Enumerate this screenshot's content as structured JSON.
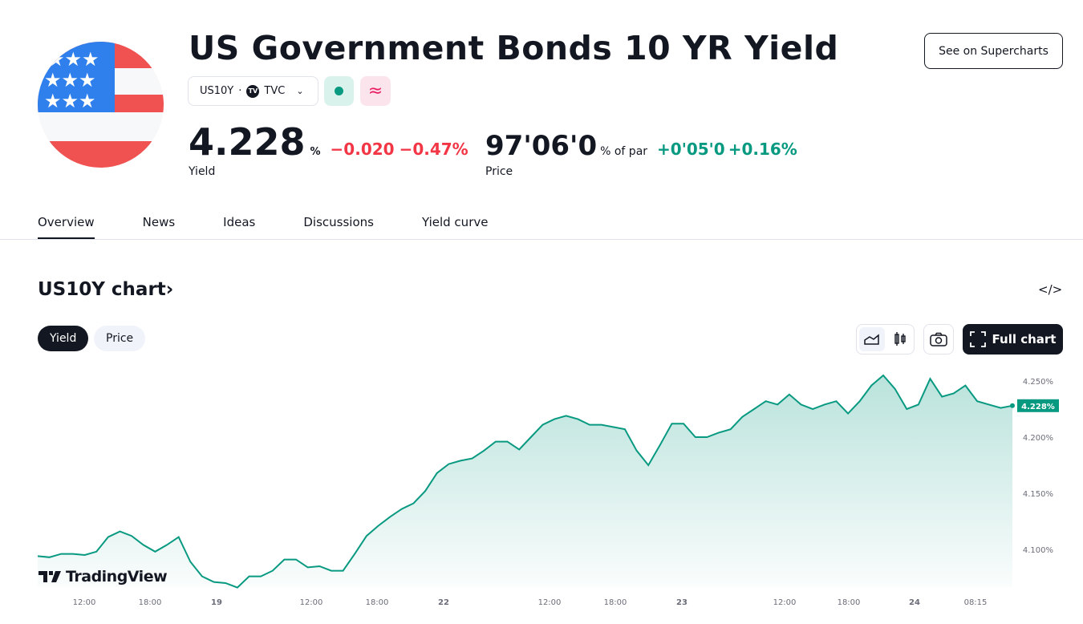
{
  "header": {
    "title": "US Government Bonds 10 YR Yield",
    "supercharts_label": "See on Supercharts",
    "symbol": "US10Y",
    "separator": "·",
    "exchange": "TVC",
    "exchange_logo": "TV",
    "delayed_icon": "≈"
  },
  "quote": {
    "yield": "4.228",
    "yield_unit": "%",
    "yield_change": "−0.020",
    "yield_change_pct": "−0.47%",
    "yield_label": "Yield",
    "price": "97'06'0",
    "price_unit": "% of par",
    "price_change": "+0'05'0",
    "price_change_pct": "+0.16%",
    "price_label": "Price"
  },
  "tabs": [
    {
      "label": "Overview",
      "active": true
    },
    {
      "label": "News"
    },
    {
      "label": "Ideas"
    },
    {
      "label": "Discussions"
    },
    {
      "label": "Yield curve"
    }
  ],
  "chart_section": {
    "title": "US10Y chart",
    "chevron": "›",
    "embed_icon": "</>",
    "toggle": [
      "Yield",
      "Price"
    ],
    "full_chart_label": "Full chart",
    "watermark": "TradingView"
  },
  "colors": {
    "up": "#089981",
    "down": "#f23645",
    "dark": "#131722"
  },
  "chart_data": {
    "type": "area",
    "series": [
      {
        "values": [
          4.094,
          4.093,
          4.096,
          4.096,
          4.095,
          4.098,
          4.111,
          4.116,
          4.112,
          4.104,
          4.098,
          4.104,
          4.111,
          4.089,
          4.076,
          4.071,
          4.07,
          4.066,
          4.076,
          4.076,
          4.081,
          4.091,
          4.091,
          4.084,
          4.085,
          4.081,
          4.081,
          4.096,
          4.112,
          4.121,
          4.129,
          4.136,
          4.141,
          4.152,
          4.168,
          4.176,
          4.179,
          4.181,
          4.188,
          4.196,
          4.196,
          4.189,
          4.2,
          4.211,
          4.216,
          4.219,
          4.216,
          4.211,
          4.211,
          4.209,
          4.207,
          4.188,
          4.175,
          4.193,
          4.212,
          4.212,
          4.2,
          4.2,
          4.204,
          4.207,
          4.218,
          4.225,
          4.232,
          4.229,
          4.238,
          4.229,
          4.225,
          4.229,
          4.232,
          4.221,
          4.232,
          4.246,
          4.255,
          4.243,
          4.225,
          4.229,
          4.252,
          4.236,
          4.239,
          4.246,
          4.232,
          4.229,
          4.226,
          4.228
        ]
      }
    ],
    "x_tick_labels": [
      "12:00",
      "18:00",
      "19",
      "12:00",
      "18:00",
      "22",
      "12:00",
      "18:00",
      "23",
      "12:00",
      "18:00",
      "24",
      "08:15"
    ],
    "y_ticks": [
      "4.250%",
      "4.200%",
      "4.150%",
      "4.100%"
    ],
    "y_tick_values": [
      4.25,
      4.2,
      4.15,
      4.1
    ],
    "last_value_label": "4.228%",
    "grid": false
  }
}
